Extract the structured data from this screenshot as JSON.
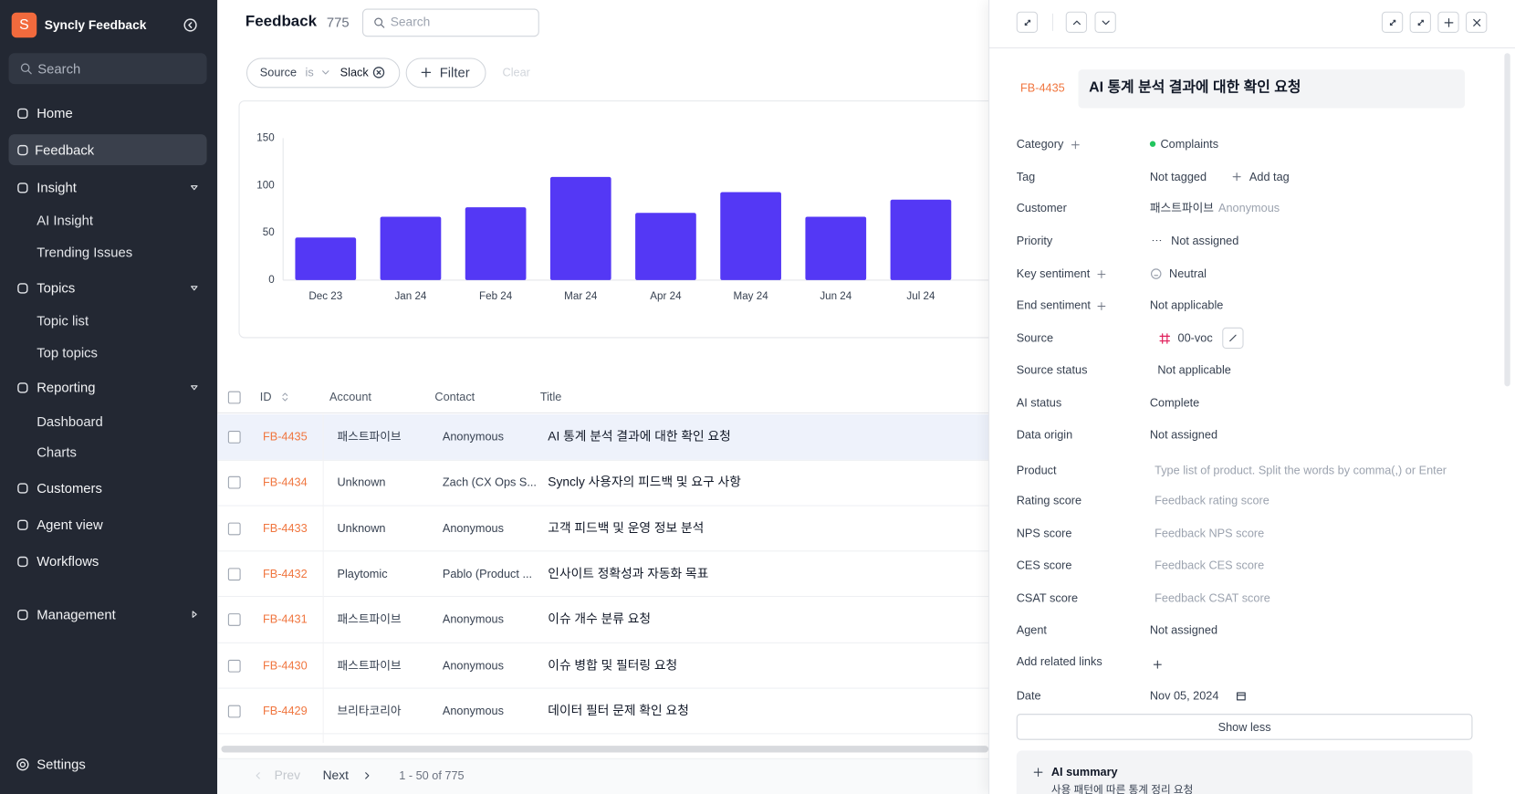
{
  "sidebar": {
    "logo": "S",
    "brand": "Syncly Feedback",
    "search": "Search",
    "nav": [
      {
        "label": "Home"
      },
      {
        "label": "Feedback"
      },
      {
        "label": "Insight",
        "children": [
          "AI Insight",
          "Trending Issues"
        ]
      },
      {
        "label": "Topics",
        "children": [
          "Topic list",
          "Top topics"
        ]
      },
      {
        "label": "Reporting",
        "children": [
          "Dashboard",
          "Charts"
        ]
      },
      {
        "label": "Customers"
      },
      {
        "label": "Agent view"
      },
      {
        "label": "Workflows"
      },
      {
        "label": "Management"
      }
    ],
    "settings": "Settings"
  },
  "header": {
    "title": "Feedback",
    "count": "775",
    "search": "Search"
  },
  "filter": {
    "field": "Source",
    "operator": "is",
    "value": "Slack",
    "add": "Filter",
    "clear": "Clear"
  },
  "chart_data": {
    "type": "bar",
    "categories": [
      "Dec 23",
      "Jan 24",
      "Feb 24",
      "Mar 24",
      "Apr 24",
      "May 24",
      "Jun 24",
      "Jul 24"
    ],
    "values": [
      45,
      67,
      77,
      109,
      71,
      93,
      67,
      85
    ],
    "color": "#5438f5",
    "ylim": [
      0,
      150
    ],
    "yticks": [
      0,
      50,
      100,
      150
    ]
  },
  "table": {
    "columns": [
      "ID",
      "Account",
      "Contact",
      "Title"
    ],
    "rows": [
      [
        "FB-4435",
        "패스트파이브",
        "Anonymous",
        "AI 통계 분석 결과에 대한 확인 요청"
      ],
      [
        "FB-4434",
        "Unknown",
        "Zach (CX Ops S...",
        "Syncly 사용자의 피드백 및 요구 사항"
      ],
      [
        "FB-4433",
        "Unknown",
        "Anonymous",
        "고객 피드백 및 운영 정보 분석"
      ],
      [
        "FB-4432",
        "Playtomic",
        "Pablo (Product ...",
        "인사이트 정확성과 자동화 목표"
      ],
      [
        "FB-4431",
        "패스트파이브",
        "Anonymous",
        "이슈 개수 분류 요청"
      ],
      [
        "FB-4430",
        "패스트파이브",
        "Anonymous",
        "이슈 병합 및 필터링 요청"
      ],
      [
        "FB-4429",
        "브리타코리아",
        "Anonymous",
        "데이터 필터 문제 확인 요청"
      ]
    ]
  },
  "pagination": {
    "prev": "Prev",
    "next": "Next",
    "range": "1 - 50 of 775"
  },
  "detail": {
    "id": "FB-4435",
    "title": "AI 통계 분석 결과에 대한 확인 요청",
    "fields": [
      {
        "label": "Category",
        "value": "Complaints"
      },
      {
        "label": "Tag",
        "value": "Not tagged",
        "action": "Add tag"
      },
      {
        "label": "Customer",
        "value": "패스트파이브",
        "secondary": "Anonymous"
      },
      {
        "label": "Priority",
        "value": "Not assigned"
      },
      {
        "label": "Key sentiment",
        "value": "Neutral"
      },
      {
        "label": "End sentiment",
        "value": "Not applicable"
      },
      {
        "label": "Source",
        "value": "00-voc"
      },
      {
        "label": "Source status",
        "value": "Not applicable"
      },
      {
        "label": "AI status",
        "value": "Complete"
      },
      {
        "label": "Data origin",
        "value": "Not assigned"
      },
      {
        "label": "Product",
        "placeholder": "Type list of product. Split the words by comma(,) or Enter"
      },
      {
        "label": "Rating score",
        "placeholder": "Feedback rating score"
      },
      {
        "label": "NPS score",
        "placeholder": "Feedback NPS score"
      },
      {
        "label": "CES score",
        "placeholder": "Feedback CES score"
      },
      {
        "label": "CSAT score",
        "placeholder": "Feedback CSAT score"
      },
      {
        "label": "Agent",
        "value": "Not assigned"
      },
      {
        "label": "Add related links"
      },
      {
        "label": "Date",
        "value": "Nov 05, 2024"
      }
    ],
    "show_less": "Show less",
    "ai_summary": {
      "title": "AI summary",
      "text": "사용 패턴에 따른 통계 정리 요청"
    }
  }
}
